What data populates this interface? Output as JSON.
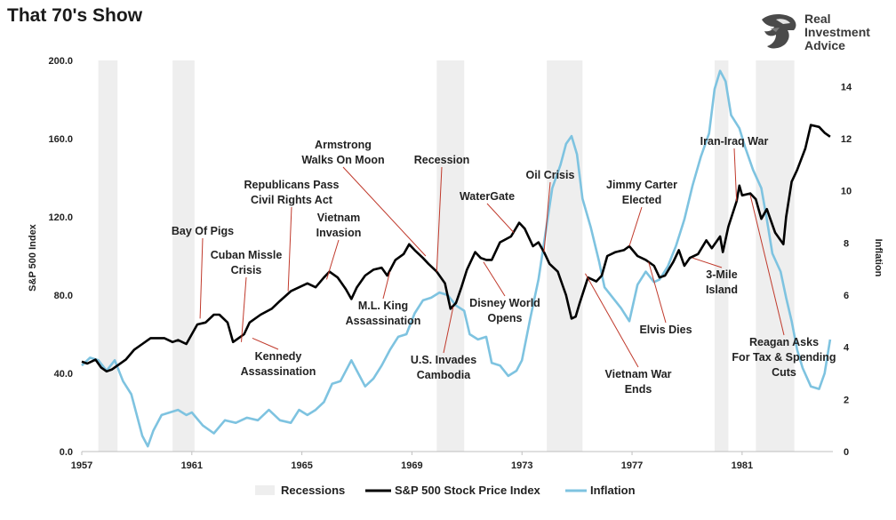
{
  "title": "That 70's Show",
  "brand": {
    "line1": "Real",
    "line2": "Investment",
    "line3": "Advice",
    "logo_icon": "eagle-head-icon"
  },
  "chart_data": {
    "type": "line",
    "ylabel": "S&P 500 Index",
    "y2label": "Inflation",
    "ylim": [
      0,
      200
    ],
    "y2lim": [
      0,
      15
    ],
    "xlim": [
      1957,
      1984.3
    ],
    "yticks": [
      "0.0",
      "40.0",
      "80.0",
      "120.0",
      "160.0",
      "200.0"
    ],
    "y2ticks": [
      "0",
      "2",
      "4",
      "6",
      "8",
      "10",
      "12",
      "14"
    ],
    "xticks": [
      "1957",
      "1961",
      "1965",
      "1969",
      "1973",
      "1977",
      "1981"
    ],
    "legend": [
      "Recessions",
      "S&P 500 Stock Price Index",
      "Inflation"
    ],
    "legend_position": "bottom",
    "colors": {
      "sp500": "#000000",
      "inflation": "#7ec3e0",
      "recession": "#eeeeee"
    },
    "recessions": [
      [
        1957.6,
        1958.3
      ],
      [
        1960.3,
        1961.1
      ],
      [
        1969.9,
        1970.9
      ],
      [
        1973.9,
        1975.2
      ],
      [
        1980.0,
        1980.5
      ],
      [
        1981.5,
        1982.9
      ]
    ],
    "series": [
      {
        "name": "S&P 500 Stock Price Index",
        "points": [
          [
            1957.0,
            46
          ],
          [
            1957.2,
            45
          ],
          [
            1957.5,
            47
          ],
          [
            1957.7,
            43
          ],
          [
            1957.9,
            41
          ],
          [
            1958.1,
            42
          ],
          [
            1958.3,
            44
          ],
          [
            1958.6,
            47
          ],
          [
            1958.9,
            52
          ],
          [
            1959.2,
            55
          ],
          [
            1959.5,
            58
          ],
          [
            1959.8,
            58
          ],
          [
            1960.0,
            58
          ],
          [
            1960.3,
            56
          ],
          [
            1960.5,
            57
          ],
          [
            1960.8,
            55
          ],
          [
            1961.0,
            60
          ],
          [
            1961.2,
            65
          ],
          [
            1961.5,
            66
          ],
          [
            1961.8,
            70
          ],
          [
            1962.0,
            70
          ],
          [
            1962.3,
            66
          ],
          [
            1962.5,
            56
          ],
          [
            1962.7,
            58
          ],
          [
            1962.9,
            60
          ],
          [
            1963.1,
            66
          ],
          [
            1963.5,
            70
          ],
          [
            1963.9,
            73
          ],
          [
            1964.2,
            77
          ],
          [
            1964.6,
            82
          ],
          [
            1964.9,
            84
          ],
          [
            1965.2,
            86
          ],
          [
            1965.5,
            84
          ],
          [
            1965.8,
            89
          ],
          [
            1966.0,
            92
          ],
          [
            1966.3,
            89
          ],
          [
            1966.6,
            83
          ],
          [
            1966.8,
            78
          ],
          [
            1967.0,
            84
          ],
          [
            1967.3,
            90
          ],
          [
            1967.6,
            93
          ],
          [
            1967.9,
            94
          ],
          [
            1968.1,
            90
          ],
          [
            1968.4,
            98
          ],
          [
            1968.7,
            101
          ],
          [
            1968.9,
            106
          ],
          [
            1969.1,
            103
          ],
          [
            1969.4,
            99
          ],
          [
            1969.6,
            96
          ],
          [
            1969.9,
            92
          ],
          [
            1970.2,
            86
          ],
          [
            1970.4,
            73
          ],
          [
            1970.6,
            76
          ],
          [
            1970.8,
            84
          ],
          [
            1971.0,
            93
          ],
          [
            1971.3,
            102
          ],
          [
            1971.5,
            99
          ],
          [
            1971.7,
            98
          ],
          [
            1971.9,
            98
          ],
          [
            1972.2,
            107
          ],
          [
            1972.6,
            110
          ],
          [
            1972.9,
            117
          ],
          [
            1973.1,
            114
          ],
          [
            1973.4,
            105
          ],
          [
            1973.6,
            107
          ],
          [
            1973.8,
            102
          ],
          [
            1974.0,
            96
          ],
          [
            1974.3,
            92
          ],
          [
            1974.6,
            80
          ],
          [
            1974.8,
            68
          ],
          [
            1974.95,
            69
          ],
          [
            1975.1,
            76
          ],
          [
            1975.4,
            89
          ],
          [
            1975.7,
            87
          ],
          [
            1975.9,
            90
          ],
          [
            1976.1,
            100
          ],
          [
            1976.4,
            102
          ],
          [
            1976.7,
            103
          ],
          [
            1976.9,
            105
          ],
          [
            1977.2,
            100
          ],
          [
            1977.5,
            98
          ],
          [
            1977.8,
            95
          ],
          [
            1978.0,
            89
          ],
          [
            1978.2,
            90
          ],
          [
            1978.5,
            97
          ],
          [
            1978.7,
            103
          ],
          [
            1978.9,
            95
          ],
          [
            1979.1,
            99
          ],
          [
            1979.4,
            101
          ],
          [
            1979.7,
            108
          ],
          [
            1979.9,
            104
          ],
          [
            1980.2,
            110
          ],
          [
            1980.3,
            102
          ],
          [
            1980.5,
            115
          ],
          [
            1980.8,
            128
          ],
          [
            1980.9,
            136
          ],
          [
            1981.0,
            131
          ],
          [
            1981.3,
            132
          ],
          [
            1981.5,
            129
          ],
          [
            1981.7,
            119
          ],
          [
            1981.9,
            124
          ],
          [
            1982.2,
            112
          ],
          [
            1982.5,
            106
          ],
          [
            1982.6,
            120
          ],
          [
            1982.8,
            138
          ],
          [
            1983.0,
            144
          ],
          [
            1983.3,
            155
          ],
          [
            1983.5,
            167
          ],
          [
            1983.8,
            166
          ],
          [
            1984.0,
            163
          ],
          [
            1984.2,
            161
          ]
        ]
      },
      {
        "name": "Inflation",
        "points": [
          [
            1957.0,
            3.3
          ],
          [
            1957.3,
            3.6
          ],
          [
            1957.6,
            3.5
          ],
          [
            1957.9,
            3.1
          ],
          [
            1958.2,
            3.5
          ],
          [
            1958.5,
            2.7
          ],
          [
            1958.8,
            2.2
          ],
          [
            1959.0,
            1.4
          ],
          [
            1959.2,
            0.6
          ],
          [
            1959.4,
            0.2
          ],
          [
            1959.6,
            0.8
          ],
          [
            1959.9,
            1.4
          ],
          [
            1960.2,
            1.5
          ],
          [
            1960.5,
            1.6
          ],
          [
            1960.8,
            1.4
          ],
          [
            1961.0,
            1.5
          ],
          [
            1961.4,
            1.0
          ],
          [
            1961.8,
            0.7
          ],
          [
            1962.2,
            1.2
          ],
          [
            1962.6,
            1.1
          ],
          [
            1963.0,
            1.3
          ],
          [
            1963.4,
            1.2
          ],
          [
            1963.8,
            1.6
          ],
          [
            1964.2,
            1.2
          ],
          [
            1964.6,
            1.1
          ],
          [
            1964.9,
            1.6
          ],
          [
            1965.2,
            1.4
          ],
          [
            1965.5,
            1.6
          ],
          [
            1965.8,
            1.9
          ],
          [
            1966.1,
            2.6
          ],
          [
            1966.4,
            2.7
          ],
          [
            1966.8,
            3.5
          ],
          [
            1967.0,
            3.1
          ],
          [
            1967.3,
            2.5
          ],
          [
            1967.6,
            2.8
          ],
          [
            1967.9,
            3.3
          ],
          [
            1968.2,
            3.9
          ],
          [
            1968.5,
            4.4
          ],
          [
            1968.8,
            4.5
          ],
          [
            1969.1,
            5.3
          ],
          [
            1969.4,
            5.8
          ],
          [
            1969.7,
            5.9
          ],
          [
            1970.0,
            6.1
          ],
          [
            1970.3,
            6.0
          ],
          [
            1970.6,
            5.6
          ],
          [
            1970.9,
            5.4
          ],
          [
            1971.1,
            4.5
          ],
          [
            1971.4,
            4.3
          ],
          [
            1971.7,
            4.4
          ],
          [
            1971.9,
            3.4
          ],
          [
            1972.2,
            3.3
          ],
          [
            1972.5,
            2.9
          ],
          [
            1972.8,
            3.1
          ],
          [
            1973.0,
            3.5
          ],
          [
            1973.3,
            5.1
          ],
          [
            1973.6,
            6.6
          ],
          [
            1973.9,
            8.7
          ],
          [
            1974.1,
            10.1
          ],
          [
            1974.4,
            11.0
          ],
          [
            1974.6,
            11.8
          ],
          [
            1974.8,
            12.1
          ],
          [
            1975.0,
            11.4
          ],
          [
            1975.2,
            9.7
          ],
          [
            1975.5,
            8.6
          ],
          [
            1975.8,
            7.3
          ],
          [
            1976.0,
            6.3
          ],
          [
            1976.3,
            5.9
          ],
          [
            1976.6,
            5.5
          ],
          [
            1976.9,
            5.0
          ],
          [
            1977.2,
            6.4
          ],
          [
            1977.5,
            6.9
          ],
          [
            1977.8,
            6.5
          ],
          [
            1978.0,
            6.6
          ],
          [
            1978.3,
            7.1
          ],
          [
            1978.6,
            7.9
          ],
          [
            1978.9,
            8.9
          ],
          [
            1979.2,
            10.2
          ],
          [
            1979.5,
            11.3
          ],
          [
            1979.8,
            12.2
          ],
          [
            1980.0,
            13.9
          ],
          [
            1980.2,
            14.6
          ],
          [
            1980.4,
            14.2
          ],
          [
            1980.6,
            12.9
          ],
          [
            1980.9,
            12.4
          ],
          [
            1981.1,
            11.7
          ],
          [
            1981.4,
            10.8
          ],
          [
            1981.7,
            10.1
          ],
          [
            1981.9,
            8.9
          ],
          [
            1982.1,
            7.6
          ],
          [
            1982.4,
            6.9
          ],
          [
            1982.6,
            5.9
          ],
          [
            1982.8,
            5.0
          ],
          [
            1983.0,
            3.9
          ],
          [
            1983.2,
            3.2
          ],
          [
            1983.5,
            2.5
          ],
          [
            1983.8,
            2.4
          ],
          [
            1984.0,
            3.0
          ],
          [
            1984.2,
            4.3
          ]
        ]
      }
    ],
    "annotations": [
      {
        "text": [
          "Bay Of Pigs"
        ],
        "x": 1961.3,
        "y": 68
      },
      {
        "text": [
          "Cuban Missle",
          "Crisis"
        ],
        "x": 1962.8,
        "y": 56
      },
      {
        "text": [
          "Kennedy",
          "Assassination"
        ],
        "x": 1963.2,
        "y": 58
      },
      {
        "text": [
          "Republicans Pass",
          "Civil Rights Act"
        ],
        "x": 1964.5,
        "y": 82
      },
      {
        "text": [
          "Vietnam",
          "Invasion"
        ],
        "x": 1965.9,
        "y": 88
      },
      {
        "text": [
          "M.L. King",
          "Assassination"
        ],
        "x": 1968.2,
        "y": 92
      },
      {
        "text": [
          "Armstrong",
          "Walks On Moon"
        ],
        "x": 1969.5,
        "y": 100
      },
      {
        "text": [
          "Recession"
        ],
        "x": 1969.9,
        "y": 92
      },
      {
        "text": [
          "U.S. Invades",
          "Cambodia"
        ],
        "x": 1970.5,
        "y": 74
      },
      {
        "text": [
          "Disney World",
          "Opens"
        ],
        "x": 1971.6,
        "y": 97
      },
      {
        "text": [
          "WaterGate"
        ],
        "x": 1972.7,
        "y": 112
      },
      {
        "text": [
          "Oil Crisis"
        ],
        "x": 1973.8,
        "y": 102
      },
      {
        "text": [
          "Vietnam War",
          "Ends"
        ],
        "x": 1975.3,
        "y": 91
      },
      {
        "text": [
          "Jimmy Carter",
          "Elected"
        ],
        "x": 1976.9,
        "y": 105
      },
      {
        "text": [
          "Elvis Dies"
        ],
        "x": 1977.6,
        "y": 97
      },
      {
        "text": [
          "3-Mile",
          "Island"
        ],
        "x": 1979.2,
        "y": 99
      },
      {
        "text": [
          "Iran-Iraq War"
        ],
        "x": 1980.8,
        "y": 128
      },
      {
        "text": [
          "Reagan Asks",
          "For Tax & Spending",
          "Cuts"
        ],
        "x": 1981.3,
        "y": 131
      }
    ]
  }
}
